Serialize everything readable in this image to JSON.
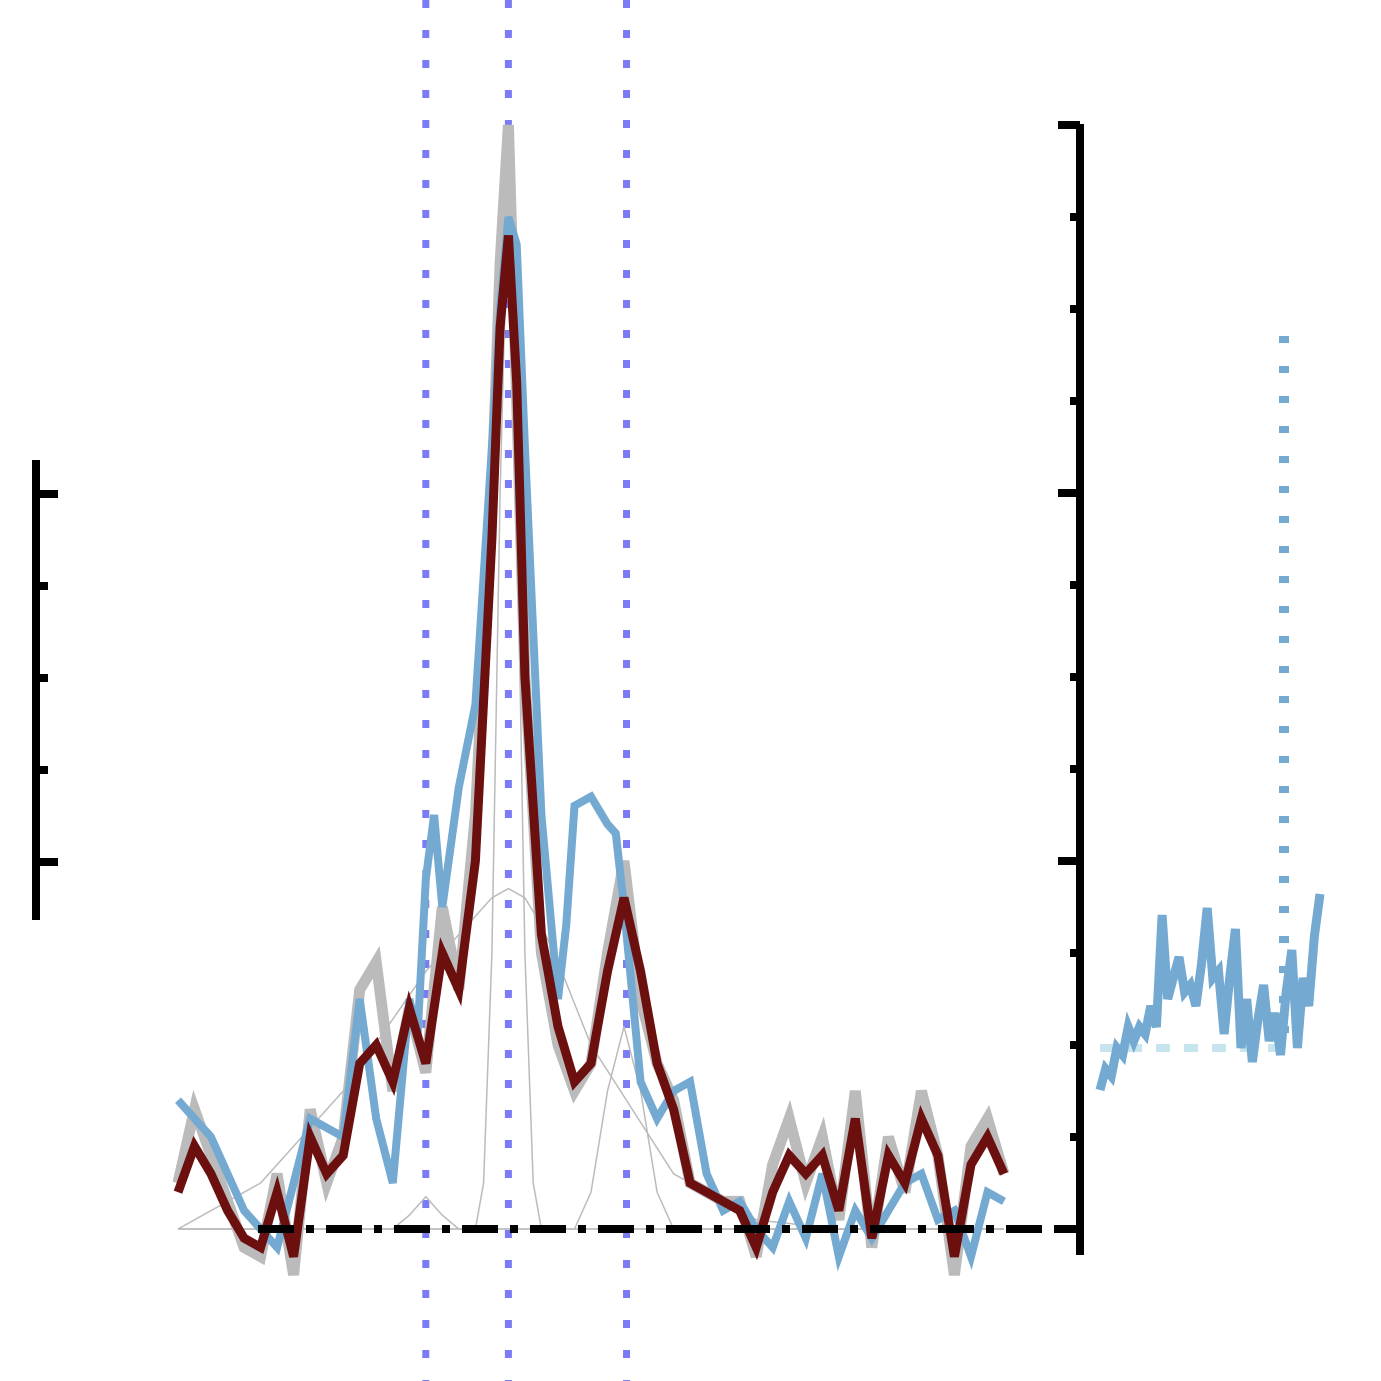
{
  "chart_data": {
    "type": "line",
    "title": "",
    "xlabel": "",
    "ylabel": "",
    "xlim": [
      0,
      100
    ],
    "ylim": [
      -0.5,
      11.5
    ],
    "left_axis_ylim": [
      5.5,
      10.5
    ],
    "grid": false,
    "legend": "none",
    "right_axis_ticks": [
      0,
      1,
      2,
      3,
      4,
      5,
      6,
      7,
      8,
      9,
      10,
      11,
      12
    ],
    "left_axis_ticks": [
      6,
      7,
      8,
      9,
      10
    ],
    "reference_lines_x": [
      30,
      40,
      54.3
    ],
    "baseline_y": 0,
    "colors": {
      "raw": "#bbbbbb",
      "smoothed": "#6c0f0f",
      "blue_fit": "#74a9d1",
      "components": "#bbbbbb",
      "ref_lines": "#7b7bf5",
      "baseline": "#000000",
      "inset_line": "#74a9d1",
      "inset_dotted": "#74a9d1",
      "inset_dashed": "#c7e5ef"
    },
    "series": [
      {
        "x": [
          0,
          2,
          4,
          6,
          8,
          10,
          12,
          14,
          16,
          18,
          20,
          22,
          24,
          26,
          28,
          30,
          32,
          34,
          36,
          38,
          39,
          40,
          41,
          42,
          44,
          46,
          48,
          50,
          52,
          54,
          56,
          58,
          60,
          62,
          64,
          66,
          68,
          70,
          72,
          74,
          76,
          78,
          80,
          82,
          84,
          86,
          88,
          90,
          92,
          94,
          96,
          98,
          100
        ],
        "y": [
          0.5,
          1.3,
          0.8,
          0.3,
          -0.2,
          -0.3,
          0.6,
          -0.5,
          1.3,
          0.5,
          1.0,
          2.6,
          2.9,
          1.5,
          2.4,
          1.7,
          3.5,
          2.6,
          4.5,
          8.0,
          10.5,
          12.0,
          9.0,
          6.0,
          3.0,
          2.0,
          1.5,
          1.8,
          3.0,
          4.0,
          2.5,
          1.8,
          1.4,
          0.5,
          0.4,
          0.3,
          0.3,
          -0.3,
          0.7,
          1.2,
          0.5,
          1.0,
          0.1,
          1.5,
          -0.2,
          1.0,
          0.4,
          1.5,
          0.8,
          -0.5,
          0.9,
          1.2,
          0.6
        ]
      },
      {
        "x": [
          0,
          2,
          4,
          6,
          8,
          10,
          12,
          14,
          16,
          18,
          20,
          22,
          24,
          26,
          28,
          30,
          32,
          34,
          36,
          38,
          39,
          40,
          41,
          42,
          44,
          46,
          48,
          50,
          52,
          54,
          56,
          58,
          60,
          62,
          64,
          66,
          68,
          70,
          72,
          74,
          76,
          78,
          80,
          82,
          84,
          86,
          88,
          90,
          92,
          94,
          96,
          98,
          100
        ],
        "y": [
          0.4,
          0.9,
          0.6,
          0.2,
          -0.1,
          -0.2,
          0.4,
          -0.3,
          1.0,
          0.6,
          0.8,
          1.8,
          2.0,
          1.6,
          2.4,
          1.8,
          3.0,
          2.6,
          4.0,
          7.5,
          9.8,
          10.8,
          9.2,
          6.0,
          3.2,
          2.2,
          1.6,
          1.8,
          2.8,
          3.6,
          2.8,
          1.8,
          1.3,
          0.5,
          0.4,
          0.3,
          0.2,
          -0.2,
          0.4,
          0.8,
          0.6,
          0.8,
          0.2,
          1.2,
          -0.1,
          0.8,
          0.5,
          1.2,
          0.8,
          -0.3,
          0.7,
          1.0,
          0.6
        ]
      },
      {
        "x": [
          0,
          4,
          8,
          12,
          16,
          20,
          22,
          24,
          26,
          28,
          29,
          30,
          31,
          32,
          34,
          36,
          38,
          39,
          40,
          41,
          42,
          44,
          46,
          47,
          48,
          50,
          52,
          53,
          54,
          56,
          58,
          60,
          62,
          64,
          66,
          68,
          70,
          72,
          74,
          76,
          78,
          80,
          82,
          84,
          86,
          88,
          90,
          92,
          94,
          96,
          98,
          100
        ],
        "y": [
          1.4,
          1.0,
          0.2,
          -0.2,
          1.2,
          1.0,
          2.5,
          1.2,
          0.5,
          2.5,
          2.1,
          3.8,
          4.5,
          3.5,
          4.8,
          5.7,
          8.5,
          10.0,
          11.0,
          10.7,
          8.5,
          4.5,
          2.5,
          3.3,
          4.6,
          4.7,
          4.4,
          4.3,
          3.5,
          1.6,
          1.2,
          1.5,
          1.6,
          0.6,
          0.2,
          0.3,
          0.0,
          -0.2,
          0.3,
          -0.1,
          0.6,
          -0.3,
          0.2,
          -0.1,
          0.2,
          0.5,
          0.6,
          0.1,
          0.2,
          -0.3,
          0.4,
          0.3
        ]
      },
      {
        "x": [
          0,
          10,
          20,
          30,
          38,
          40,
          42,
          44,
          46,
          50,
          60,
          70,
          80,
          90,
          100
        ],
        "y": [
          0.0,
          0.5,
          1.5,
          2.8,
          3.6,
          3.7,
          3.6,
          3.3,
          2.9,
          2.0,
          0.6,
          0.1,
          0.0,
          0.0,
          0.0
        ]
      },
      {
        "x": [
          0,
          26,
          28,
          30,
          32,
          34,
          40,
          100
        ],
        "y": [
          0.0,
          0.0,
          0.15,
          0.35,
          0.15,
          0.0,
          0.0,
          0.0
        ]
      },
      {
        "x": [
          0,
          36,
          37,
          38,
          39,
          40,
          41,
          42,
          43,
          44,
          100
        ],
        "y": [
          0.0,
          0.0,
          0.5,
          3.0,
          8.0,
          11.5,
          8.0,
          3.0,
          0.5,
          0.0,
          0.0
        ]
      },
      {
        "x": [
          0,
          48,
          50,
          52,
          54,
          56,
          58,
          60,
          100
        ],
        "y": [
          0.0,
          0.0,
          0.4,
          1.5,
          2.2,
          1.5,
          0.4,
          0.0,
          0.0
        ]
      }
    ],
    "inset": {
      "type": "line",
      "values": [
        0.0,
        0.3,
        0.2,
        0.6,
        0.5,
        0.9,
        0.7,
        0.9,
        0.8,
        1.2,
        0.9,
        2.5,
        1.3,
        1.6,
        1.9,
        1.4,
        1.5,
        1.2,
        1.8,
        2.6,
        1.6,
        1.7,
        0.8,
        1.6,
        2.3,
        0.6,
        1.3,
        0.4,
        1.0,
        1.5,
        0.7,
        1.1,
        0.5,
        1.4,
        2.0,
        0.6,
        1.6,
        1.2,
        2.2,
        2.8
      ]
    }
  }
}
